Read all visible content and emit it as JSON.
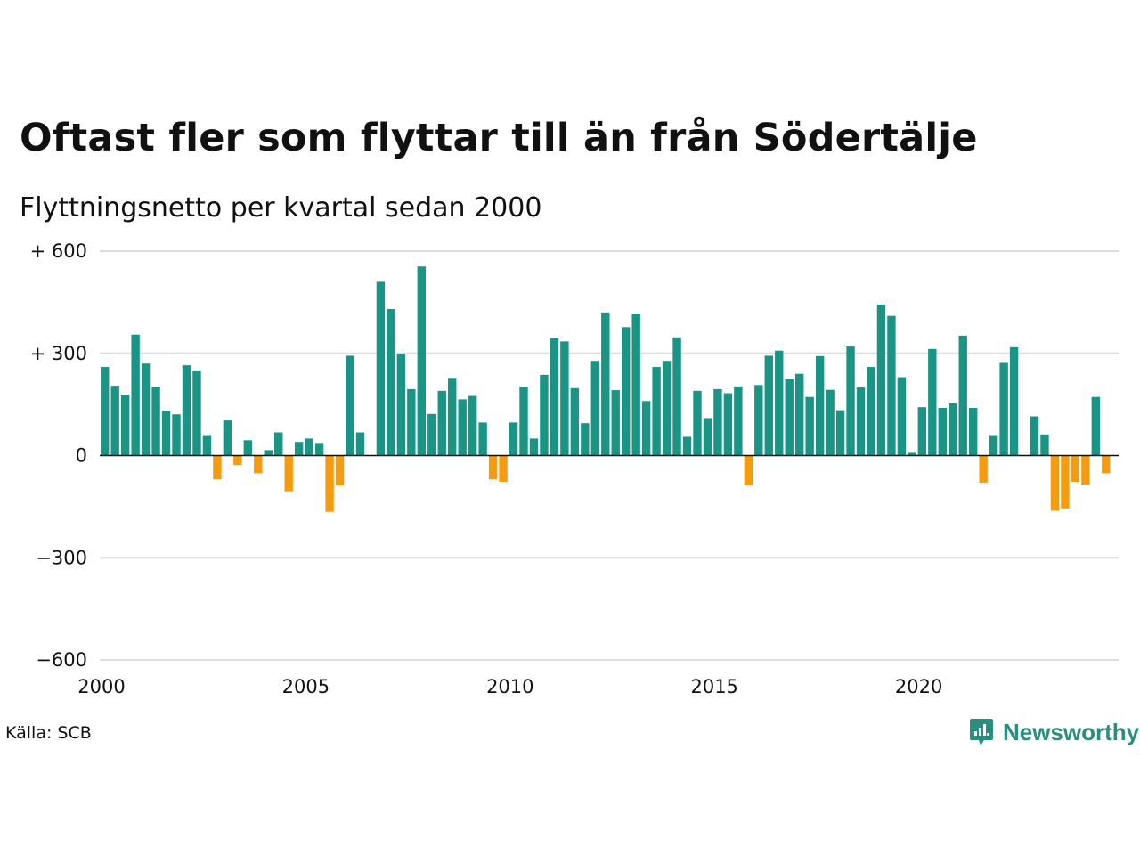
{
  "header": {
    "title": "Oftast fler som flyttar till än från Södertälje",
    "subtitle": "Flyttningsnetto per kvartal sedan 2000"
  },
  "footer": {
    "source": "Källa: SCB",
    "brand": "Newsworthy"
  },
  "colors": {
    "positive": "#1a9485",
    "negative": "#f39c12",
    "grid": "#dddddd",
    "zero_line": "#111111",
    "brand": "#2a8e7e"
  },
  "icons": {
    "brand_logo": "newsworthy-logo-icon"
  },
  "chart_data": {
    "type": "bar",
    "x_start": "2000-Q1",
    "x_tick_labels": [
      "2000",
      "2005",
      "2010",
      "2015",
      "2020"
    ],
    "y_tick_values": [
      600,
      300,
      0,
      -300,
      -600
    ],
    "y_tick_labels": [
      "+ 600",
      "+ 300",
      "0",
      "−300",
      "−600"
    ],
    "ylim": [
      -600,
      600
    ],
    "grid": true,
    "legend": "none",
    "values": [
      260,
      205,
      178,
      355,
      270,
      202,
      132,
      121,
      265,
      250,
      60,
      -70,
      103,
      -28,
      45,
      -52,
      16,
      68,
      -105,
      40,
      50,
      37,
      -165,
      -88,
      293,
      68,
      0,
      510,
      430,
      298,
      195,
      555,
      122,
      190,
      228,
      165,
      175,
      97,
      -70,
      -77,
      97,
      202,
      50,
      237,
      345,
      335,
      198,
      95,
      278,
      420,
      192,
      377,
      417,
      160,
      260,
      278,
      347,
      55,
      190,
      110,
      195,
      183,
      203,
      -87,
      207,
      293,
      308,
      225,
      240,
      172,
      292,
      193,
      133,
      320,
      200,
      260,
      443,
      410,
      230,
      8,
      142,
      313,
      140,
      153,
      352,
      140,
      -80,
      60,
      272,
      318,
      0,
      115,
      62,
      -162,
      -155,
      -77,
      -85,
      172,
      -52
    ]
  }
}
